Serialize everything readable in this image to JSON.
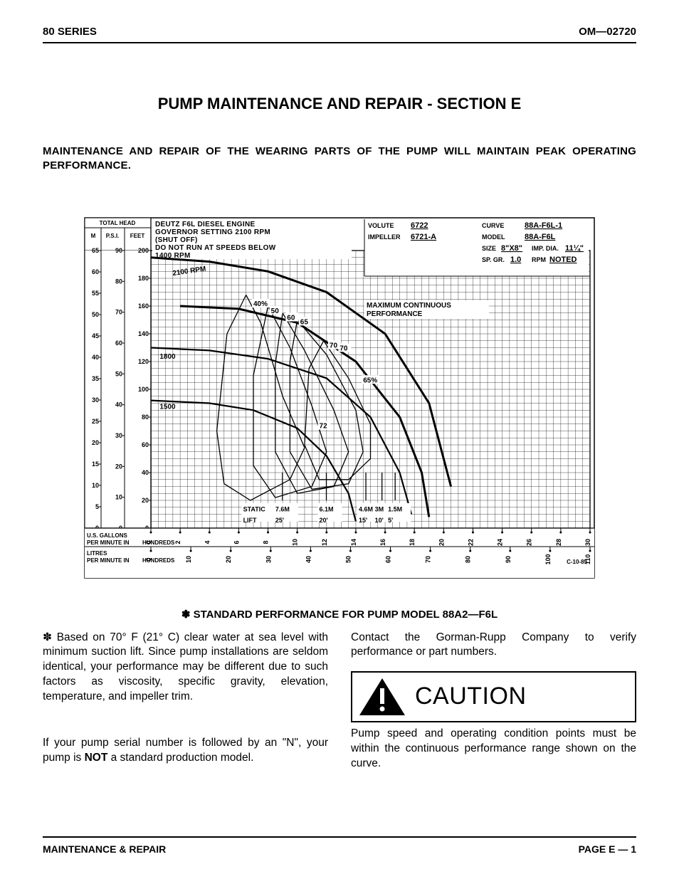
{
  "header": {
    "left": "80 SERIES",
    "right": "OM—02720"
  },
  "title": "PUMP MAINTENANCE AND REPAIR - SECTION E",
  "intro": "MAINTENANCE AND REPAIR OF THE WEARING PARTS OF THE PUMP WILL MAINTAIN PEAK OPERATING PERFORMANCE.",
  "chart": {
    "type": "pump-performance-curve",
    "background_color": "#ffffff",
    "line_color": "#000000",
    "grid_stroke_width": 0.35,
    "curve_stroke_width": 2.2,
    "curve_thick_width": 3,
    "curve_thin_width": 1.3,
    "font_family": "Arial",
    "axis_title_fontsize": 8,
    "tick_fontsize": 9,
    "meta_fontsize": 9,
    "header_block": {
      "title": "TOTAL HEAD",
      "cols": [
        "M",
        "P.S.I.",
        "FEET"
      ]
    },
    "engine_text": [
      "DEUTZ F6L DIESEL ENGINE",
      "GOVERNOR SETTING 2100 RPM",
      "(SHUT OFF)",
      "DO NOT RUN AT SPEEDS BELOW",
      "1400 RPM"
    ],
    "meta": {
      "volute": {
        "label": "VOLUTE",
        "value": "6722"
      },
      "impeller": {
        "label": "IMPELLER",
        "value": "6721-A"
      },
      "curve": {
        "label": "CURVE",
        "value": "88A-F6L-1"
      },
      "model": {
        "label": "MODEL",
        "value": "88A-F6L"
      },
      "size": {
        "label": "SIZE",
        "value": "8\"X8\""
      },
      "imp_dia": {
        "label": "IMP. DIA.",
        "value": "11¼\""
      },
      "sp_gr": {
        "label": "SP. GR.",
        "value": "1.0"
      },
      "rpm": {
        "label": "RPM",
        "value": "NOTED"
      }
    },
    "y_axis": {
      "m": {
        "min": 0,
        "max": 65,
        "ticks": [
          0,
          5,
          10,
          15,
          20,
          25,
          30,
          35,
          40,
          45,
          50,
          55,
          60,
          65
        ]
      },
      "psi": {
        "min": 0,
        "max": 90,
        "ticks": [
          0,
          10,
          20,
          30,
          40,
          50,
          60,
          70,
          80,
          90
        ]
      },
      "feet": {
        "min": 0,
        "max": 200,
        "ticks": [
          0,
          20,
          40,
          60,
          80,
          100,
          120,
          140,
          160,
          180,
          200
        ]
      }
    },
    "x_axis": {
      "flow_gpm_x100": {
        "label": "U.S. GALLONS\nPER MINUTE IN HUNDREDS",
        "min": 0,
        "max": 30,
        "ticks": [
          0,
          2,
          4,
          6,
          8,
          10,
          12,
          14,
          16,
          18,
          20,
          22,
          24,
          26,
          28,
          30
        ]
      },
      "flow_lpm_x100": {
        "label": "LITRES\nPER MINUTE IN HUNDREDS",
        "min": 0,
        "max": 110,
        "ticks": [
          0,
          10,
          20,
          30,
          40,
          50,
          60,
          70,
          80,
          90,
          100,
          110
        ]
      }
    },
    "max_perf_label": "MAXIMUM CONTINUOUS\nPERFORMANCE",
    "rpm_curves": [
      {
        "label": "2100 RPM",
        "points_gpm_feet": [
          [
            0,
            195
          ],
          [
            4,
            192
          ],
          [
            8,
            185
          ],
          [
            12,
            170
          ],
          [
            16,
            140
          ],
          [
            19,
            90
          ],
          [
            20.5,
            30
          ]
        ]
      },
      {
        "label": "1800",
        "points_gpm_feet": [
          [
            0,
            130
          ],
          [
            4,
            128
          ],
          [
            8,
            122
          ],
          [
            12,
            108
          ],
          [
            15,
            80
          ],
          [
            17,
            40
          ],
          [
            17.8,
            10
          ]
        ]
      },
      {
        "label": "1500",
        "points_gpm_feet": [
          [
            0,
            92
          ],
          [
            4,
            90
          ],
          [
            7,
            85
          ],
          [
            10,
            72
          ],
          [
            12,
            52
          ],
          [
            13.5,
            25
          ],
          [
            14,
            5
          ]
        ]
      }
    ],
    "efficiency_labels": [
      {
        "text": "40%",
        "gpm": 7,
        "feet": 160
      },
      {
        "text": "50",
        "gpm": 8.2,
        "feet": 155
      },
      {
        "text": "60",
        "gpm": 9.3,
        "feet": 150
      },
      {
        "text": "65",
        "gpm": 10.2,
        "feet": 147
      },
      {
        "text": "70",
        "gpm": 12.2,
        "feet": 130
      },
      {
        "text": "70",
        "gpm": 12.9,
        "feet": 128
      },
      {
        "text": "72",
        "gpm": 11.5,
        "feet": 72
      },
      {
        "text": "65%",
        "gpm": 14.5,
        "feet": 105
      }
    ],
    "efficiency_loops": [
      {
        "points_gpm_feet": [
          [
            6.5,
            168
          ],
          [
            7.5,
            148
          ],
          [
            9.0,
            95
          ],
          [
            10.5,
            58
          ],
          [
            9.5,
            35
          ],
          [
            6.8,
            20
          ],
          [
            5.0,
            32
          ],
          [
            4.5,
            70
          ],
          [
            5.2,
            140
          ],
          [
            6.5,
            168
          ]
        ]
      },
      {
        "points_gpm_feet": [
          [
            8.0,
            160
          ],
          [
            9.5,
            130
          ],
          [
            11.0,
            88
          ],
          [
            12.0,
            55
          ],
          [
            11.0,
            30
          ],
          [
            8.5,
            22
          ],
          [
            7.0,
            45
          ],
          [
            7.0,
            110
          ],
          [
            8.0,
            160
          ]
        ]
      },
      {
        "points_gpm_feet": [
          [
            9.0,
            155
          ],
          [
            10.5,
            128
          ],
          [
            12.5,
            85
          ],
          [
            13.5,
            55
          ],
          [
            12.5,
            30
          ],
          [
            10.0,
            25
          ],
          [
            8.5,
            55
          ],
          [
            8.5,
            118
          ],
          [
            9.0,
            155
          ]
        ]
      },
      {
        "points_gpm_feet": [
          [
            10.0,
            150
          ],
          [
            12.0,
            125
          ],
          [
            14.0,
            85
          ],
          [
            14.5,
            55
          ],
          [
            13.5,
            32
          ],
          [
            11.0,
            28
          ],
          [
            9.5,
            55
          ],
          [
            9.5,
            120
          ],
          [
            10.0,
            150
          ]
        ]
      },
      {
        "points_gpm_feet": [
          [
            11.8,
            135
          ],
          [
            13.5,
            108
          ],
          [
            15.0,
            75
          ],
          [
            15.0,
            50
          ],
          [
            13.5,
            35
          ],
          [
            11.5,
            35
          ],
          [
            10.5,
            60
          ],
          [
            10.8,
            115
          ],
          [
            11.8,
            135
          ]
        ]
      }
    ],
    "max_perf_curve": {
      "points_gpm_feet": [
        [
          2,
          160
        ],
        [
          6,
          158
        ],
        [
          10,
          148
        ],
        [
          14,
          120
        ],
        [
          17,
          80
        ],
        [
          18.5,
          40
        ],
        [
          19,
          8
        ]
      ]
    },
    "static_lift": {
      "title": "STATIC LIFT",
      "rows_m_ft_gpm": [
        {
          "m": "7.6M",
          "ft": "25'",
          "gpm": 8.5
        },
        {
          "m": "6.1M",
          "ft": "20'",
          "gpm": 11.5
        },
        {
          "m": "4.6M",
          "ft": "15'",
          "gpm": 14.2
        },
        {
          "m": "3M",
          "ft": "10'",
          "gpm": 15.3
        },
        {
          "m": "1.5M",
          "ft": "5'",
          "gpm": 16.2
        }
      ]
    },
    "ref": "C-10-85"
  },
  "figcap_prefix": "✽",
  "figcap_text": "STANDARD PERFORMANCE FOR PUMP MODEL 88A2—F6L",
  "cols": {
    "left1_prefix": "✽",
    "left1": "Based on 70° F (21° C) clear water at sea level with minimum suction lift. Since pump installations are seldom identical, your performance may be different due to such factors as viscosity, specific gravity, elevation, temperature, and impeller trim.",
    "left2a": "If your pump serial number is followed by an \"N\", your pump is ",
    "left2_bold": "NOT",
    "left2b": " a standard production model.",
    "right1": "Contact the Gorman-Rupp Company to verify performance or part numbers.",
    "caution_label": "CAUTION",
    "caution_text": "Pump speed and operating condition points must be within the continuous performance range shown on the curve."
  },
  "footer": {
    "left": "MAINTENANCE & REPAIR",
    "right": "PAGE E — 1"
  }
}
